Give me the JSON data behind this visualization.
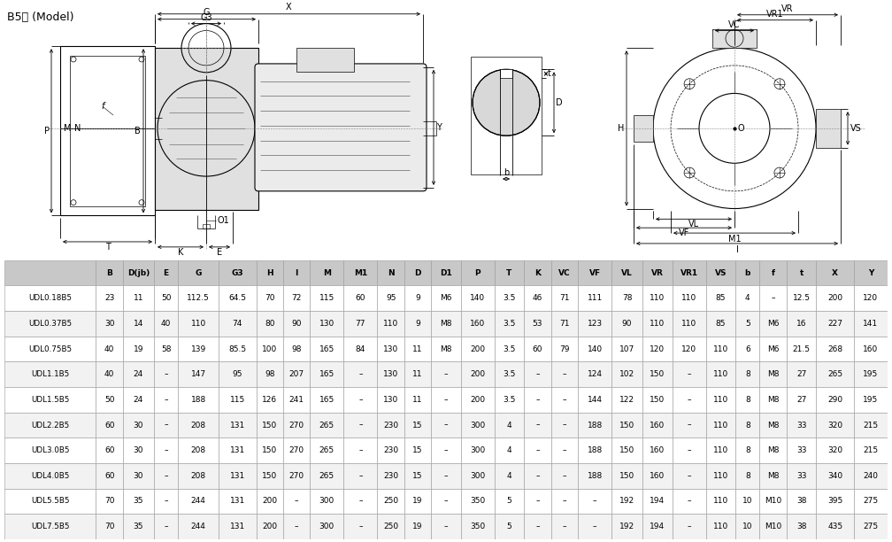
{
  "title": "B5型 (Model)",
  "header": [
    "",
    "B",
    "D(jb)",
    "E",
    "G",
    "G3",
    "H",
    "I",
    "M",
    "M1",
    "N",
    "D",
    "D1",
    "P",
    "T",
    "K",
    "VC",
    "VF",
    "VL",
    "VR",
    "VR1",
    "VS",
    "b",
    "f",
    "t",
    "X",
    "Y"
  ],
  "rows": [
    [
      "UDL0.18B5",
      "23",
      "11",
      "50",
      "112.5",
      "64.5",
      "70",
      "72",
      "115",
      "60",
      "95",
      "9",
      "M6",
      "140",
      "3.5",
      "46",
      "71",
      "111",
      "78",
      "110",
      "110",
      "85",
      "4",
      "–",
      "12.5",
      "200",
      "120"
    ],
    [
      "UDL0.37B5",
      "30",
      "14",
      "40",
      "110",
      "74",
      "80",
      "90",
      "130",
      "77",
      "110",
      "9",
      "M8",
      "160",
      "3.5",
      "53",
      "71",
      "123",
      "90",
      "110",
      "110",
      "85",
      "5",
      "M6",
      "16",
      "227",
      "141"
    ],
    [
      "UDL0.75B5",
      "40",
      "19",
      "58",
      "139",
      "85.5",
      "100",
      "98",
      "165",
      "84",
      "130",
      "11",
      "M8",
      "200",
      "3.5",
      "60",
      "79",
      "140",
      "107",
      "120",
      "120",
      "110",
      "6",
      "M6",
      "21.5",
      "268",
      "160"
    ],
    [
      "UDL1.1B5",
      "40",
      "24",
      "–",
      "147",
      "95",
      "98",
      "207",
      "165",
      "–",
      "130",
      "11",
      "–",
      "200",
      "3.5",
      "–",
      "–",
      "124",
      "102",
      "150",
      "–",
      "110",
      "8",
      "M8",
      "27",
      "265",
      "195"
    ],
    [
      "UDL1.5B5",
      "50",
      "24",
      "–",
      "188",
      "115",
      "126",
      "241",
      "165",
      "–",
      "130",
      "11",
      "–",
      "200",
      "3.5",
      "–",
      "–",
      "144",
      "122",
      "150",
      "–",
      "110",
      "8",
      "M8",
      "27",
      "290",
      "195"
    ],
    [
      "UDL2.2B5",
      "60",
      "30",
      "–",
      "208",
      "131",
      "150",
      "270",
      "265",
      "–",
      "230",
      "15",
      "–",
      "300",
      "4",
      "–",
      "–",
      "188",
      "150",
      "160",
      "–",
      "110",
      "8",
      "M8",
      "33",
      "320",
      "215"
    ],
    [
      "UDL3.0B5",
      "60",
      "30",
      "–",
      "208",
      "131",
      "150",
      "270",
      "265",
      "–",
      "230",
      "15",
      "–",
      "300",
      "4",
      "–",
      "–",
      "188",
      "150",
      "160",
      "–",
      "110",
      "8",
      "M8",
      "33",
      "320",
      "215"
    ],
    [
      "UDL4.0B5",
      "60",
      "30",
      "–",
      "208",
      "131",
      "150",
      "270",
      "265",
      "–",
      "230",
      "15",
      "–",
      "300",
      "4",
      "–",
      "–",
      "188",
      "150",
      "160",
      "–",
      "110",
      "8",
      "M8",
      "33",
      "340",
      "240"
    ],
    [
      "UDL5.5B5",
      "70",
      "35",
      "–",
      "244",
      "131",
      "200",
      "–",
      "300",
      "–",
      "250",
      "19",
      "–",
      "350",
      "5",
      "–",
      "–",
      "–",
      "192",
      "194",
      "–",
      "110",
      "10",
      "M10",
      "38",
      "395",
      "275"
    ],
    [
      "UDL7.5B5",
      "70",
      "35",
      "–",
      "244",
      "131",
      "200",
      "–",
      "300",
      "–",
      "250",
      "19",
      "–",
      "350",
      "5",
      "–",
      "–",
      "–",
      "192",
      "194",
      "–",
      "110",
      "10",
      "M10",
      "38",
      "435",
      "275"
    ]
  ],
  "col_widths_raw": [
    6.8,
    2.0,
    2.3,
    1.8,
    3.0,
    2.8,
    2.0,
    2.0,
    2.5,
    2.5,
    2.0,
    2.0,
    2.2,
    2.5,
    2.2,
    2.0,
    2.0,
    2.5,
    2.3,
    2.2,
    2.5,
    2.2,
    1.8,
    2.0,
    2.2,
    2.8,
    2.5
  ],
  "bg_header": "#c8c8c8",
  "bg_row_even": "#ffffff",
  "bg_row_odd": "#f2f2f2",
  "border_color": "#999999",
  "text_color": "#000000",
  "fig_width": 10.08,
  "fig_height": 6.12
}
